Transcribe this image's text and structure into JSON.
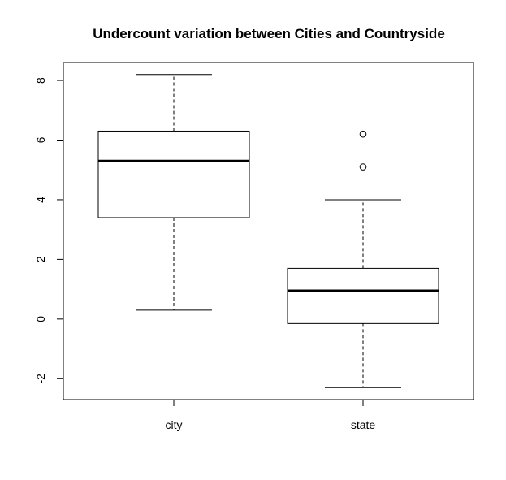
{
  "chart_data": {
    "type": "boxplot",
    "title": "Undercount variation between Cities and Countryside",
    "xlabel": "",
    "ylabel": "",
    "categories": [
      "city",
      "state"
    ],
    "ylim": [
      -2.7,
      8.6
    ],
    "yticks": [
      -2,
      0,
      2,
      4,
      6,
      8
    ],
    "boxes": [
      {
        "category": "city",
        "whisker_low": 0.3,
        "q1": 3.4,
        "median": 5.3,
        "q3": 6.3,
        "whisker_high": 8.2,
        "outliers": []
      },
      {
        "category": "state",
        "whisker_low": -2.3,
        "q1": -0.15,
        "median": 0.95,
        "q3": 1.7,
        "whisker_high": 4.0,
        "outliers": [
          5.1,
          6.2
        ]
      }
    ],
    "grid": false,
    "legend": "none"
  }
}
